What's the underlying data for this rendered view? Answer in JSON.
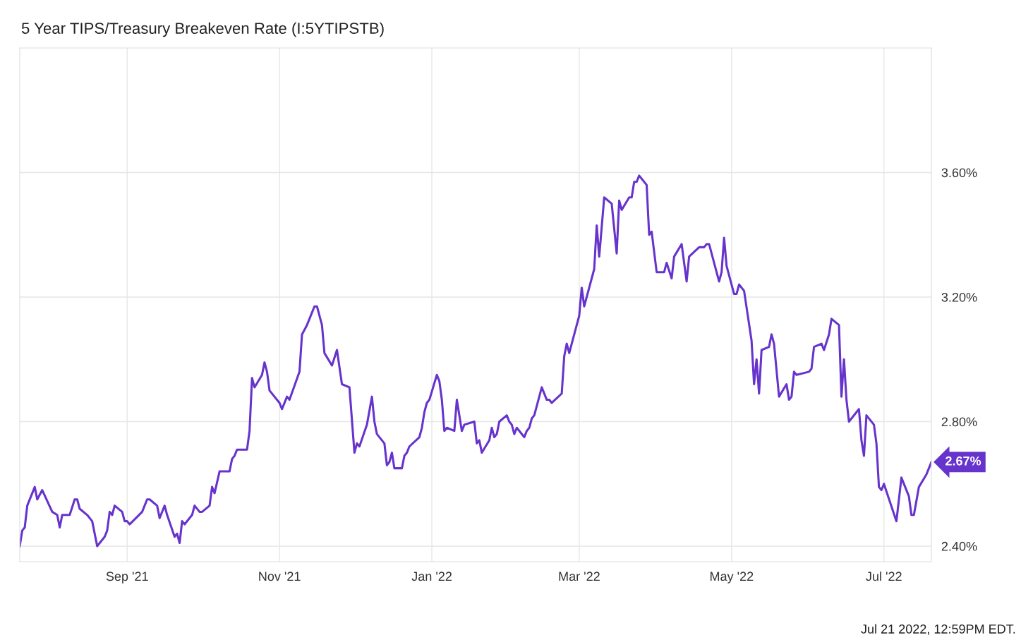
{
  "chart_data": {
    "type": "line",
    "title": "5 Year TIPS/Treasury Breakeven Rate (I:5YTIPSTB)",
    "x": [
      "2021-07-20",
      "2021-07-21",
      "2021-07-22",
      "2021-07-23",
      "2021-07-26",
      "2021-07-27",
      "2021-07-29",
      "2021-08-02",
      "2021-08-04",
      "2021-08-05",
      "2021-08-06",
      "2021-08-09",
      "2021-08-11",
      "2021-08-12",
      "2021-08-13",
      "2021-08-16",
      "2021-08-18",
      "2021-08-20",
      "2021-08-23",
      "2021-08-24",
      "2021-08-25",
      "2021-08-26",
      "2021-08-27",
      "2021-08-30",
      "2021-08-31",
      "2021-09-01",
      "2021-09-02",
      "2021-09-07",
      "2021-09-09",
      "2021-09-10",
      "2021-09-13",
      "2021-09-14",
      "2021-09-16",
      "2021-09-17",
      "2021-09-20",
      "2021-09-21",
      "2021-09-22",
      "2021-09-23",
      "2021-09-24",
      "2021-09-27",
      "2021-09-28",
      "2021-09-30",
      "2021-10-01",
      "2021-10-04",
      "2021-10-05",
      "2021-10-06",
      "2021-10-08",
      "2021-10-12",
      "2021-10-13",
      "2021-10-14",
      "2021-10-15",
      "2021-10-19",
      "2021-10-20",
      "2021-10-21",
      "2021-10-22",
      "2021-10-25",
      "2021-10-26",
      "2021-10-27",
      "2021-10-28",
      "2021-11-01",
      "2021-11-02",
      "2021-11-04",
      "2021-11-05",
      "2021-11-09",
      "2021-11-10",
      "2021-11-12",
      "2021-11-15",
      "2021-11-16",
      "2021-11-18",
      "2021-11-19",
      "2021-11-22",
      "2021-11-24",
      "2021-11-26",
      "2021-11-29",
      "2021-12-01",
      "2021-12-02",
      "2021-12-03",
      "2021-12-06",
      "2021-12-08",
      "2021-12-09",
      "2021-12-10",
      "2021-12-13",
      "2021-12-14",
      "2021-12-15",
      "2021-12-16",
      "2021-12-17",
      "2021-12-20",
      "2021-12-21",
      "2021-12-22",
      "2021-12-23",
      "2021-12-27",
      "2021-12-28",
      "2021-12-29",
      "2021-12-30",
      "2021-12-31",
      "2022-01-03",
      "2022-01-04",
      "2022-01-05",
      "2022-01-06",
      "2022-01-07",
      "2022-01-10",
      "2022-01-11",
      "2022-01-13",
      "2022-01-14",
      "2022-01-18",
      "2022-01-19",
      "2022-01-20",
      "2022-01-21",
      "2022-01-24",
      "2022-01-25",
      "2022-01-26",
      "2022-01-27",
      "2022-01-28",
      "2022-01-31",
      "2022-02-01",
      "2022-02-02",
      "2022-02-03",
      "2022-02-04",
      "2022-02-07",
      "2022-02-08",
      "2022-02-09",
      "2022-02-10",
      "2022-02-11",
      "2022-02-14",
      "2022-02-16",
      "2022-02-17",
      "2022-02-18",
      "2022-02-22",
      "2022-02-23",
      "2022-02-24",
      "2022-02-25",
      "2022-03-01",
      "2022-03-02",
      "2022-03-03",
      "2022-03-04",
      "2022-03-07",
      "2022-03-08",
      "2022-03-09",
      "2022-03-11",
      "2022-03-14",
      "2022-03-16",
      "2022-03-17",
      "2022-03-18",
      "2022-03-21",
      "2022-03-22",
      "2022-03-23",
      "2022-03-24",
      "2022-03-25",
      "2022-03-28",
      "2022-03-29",
      "2022-03-30",
      "2022-04-01",
      "2022-04-04",
      "2022-04-05",
      "2022-04-07",
      "2022-04-08",
      "2022-04-11",
      "2022-04-13",
      "2022-04-14",
      "2022-04-18",
      "2022-04-20",
      "2022-04-21",
      "2022-04-22",
      "2022-04-25",
      "2022-04-26",
      "2022-04-27",
      "2022-04-28",
      "2022-04-29",
      "2022-05-02",
      "2022-05-03",
      "2022-05-04",
      "2022-05-06",
      "2022-05-09",
      "2022-05-10",
      "2022-05-11",
      "2022-05-12",
      "2022-05-13",
      "2022-05-16",
      "2022-05-17",
      "2022-05-18",
      "2022-05-20",
      "2022-05-23",
      "2022-05-24",
      "2022-05-25",
      "2022-05-26",
      "2022-05-27",
      "2022-06-01",
      "2022-06-02",
      "2022-06-03",
      "2022-06-06",
      "2022-06-07",
      "2022-06-09",
      "2022-06-10",
      "2022-06-13",
      "2022-06-14",
      "2022-06-15",
      "2022-06-16",
      "2022-06-17",
      "2022-06-21",
      "2022-06-22",
      "2022-06-23",
      "2022-06-24",
      "2022-06-27",
      "2022-06-28",
      "2022-06-29",
      "2022-06-30",
      "2022-07-01",
      "2022-07-06",
      "2022-07-08",
      "2022-07-11",
      "2022-07-12",
      "2022-07-13",
      "2022-07-15",
      "2022-07-18",
      "2022-07-20"
    ],
    "series": [
      {
        "color": "#6633cc",
        "values": [
          2.4,
          2.45,
          2.46,
          2.53,
          2.59,
          2.55,
          2.58,
          2.51,
          2.5,
          2.46,
          2.5,
          2.5,
          2.55,
          2.55,
          2.52,
          2.5,
          2.48,
          2.4,
          2.43,
          2.45,
          2.51,
          2.5,
          2.53,
          2.51,
          2.48,
          2.48,
          2.47,
          2.51,
          2.55,
          2.55,
          2.53,
          2.49,
          2.53,
          2.5,
          2.43,
          2.44,
          2.41,
          2.48,
          2.47,
          2.5,
          2.53,
          2.51,
          2.51,
          2.53,
          2.59,
          2.57,
          2.64,
          2.64,
          2.68,
          2.69,
          2.71,
          2.71,
          2.77,
          2.94,
          2.91,
          2.95,
          2.99,
          2.96,
          2.9,
          2.86,
          2.84,
          2.88,
          2.87,
          2.96,
          3.08,
          3.11,
          3.17,
          3.17,
          3.11,
          3.02,
          2.98,
          3.03,
          2.92,
          2.91,
          2.7,
          2.73,
          2.72,
          2.79,
          2.88,
          2.8,
          2.76,
          2.73,
          2.66,
          2.67,
          2.7,
          2.65,
          2.65,
          2.69,
          2.7,
          2.72,
          2.75,
          2.78,
          2.83,
          2.86,
          2.87,
          2.95,
          2.93,
          2.87,
          2.77,
          2.78,
          2.77,
          2.87,
          2.77,
          2.79,
          2.8,
          2.73,
          2.74,
          2.7,
          2.74,
          2.78,
          2.75,
          2.76,
          2.8,
          2.82,
          2.8,
          2.79,
          2.76,
          2.78,
          2.75,
          2.77,
          2.78,
          2.81,
          2.82,
          2.91,
          2.87,
          2.87,
          2.86,
          2.89,
          3.01,
          3.05,
          3.02,
          3.14,
          3.23,
          3.17,
          3.2,
          3.29,
          3.43,
          3.33,
          3.52,
          3.5,
          3.34,
          3.51,
          3.48,
          3.52,
          3.52,
          3.57,
          3.57,
          3.59,
          3.56,
          3.4,
          3.41,
          3.28,
          3.28,
          3.31,
          3.26,
          3.33,
          3.37,
          3.25,
          3.33,
          3.36,
          3.36,
          3.37,
          3.37,
          3.28,
          3.25,
          3.28,
          3.39,
          3.3,
          3.21,
          3.21,
          3.24,
          3.22,
          3.06,
          2.92,
          3.0,
          2.89,
          3.03,
          3.04,
          3.08,
          3.05,
          2.88,
          2.92,
          2.87,
          2.88,
          2.96,
          2.95,
          2.96,
          2.97,
          3.04,
          3.05,
          3.03,
          3.08,
          3.13,
          3.11,
          2.88,
          3.0,
          2.87,
          2.8,
          2.84,
          2.74,
          2.69,
          2.82,
          2.79,
          2.73,
          2.59,
          2.58,
          2.6,
          2.48,
          2.62,
          2.56,
          2.5,
          2.5,
          2.59,
          2.63,
          2.67
        ]
      }
    ],
    "xlim": [
      "2021-07-20",
      "2022-07-20"
    ],
    "xticks": [
      {
        "value": "2021-09-01",
        "label": "Sep '21"
      },
      {
        "value": "2021-11-01",
        "label": "Nov '21"
      },
      {
        "value": "2022-01-01",
        "label": "Jan '22"
      },
      {
        "value": "2022-03-01",
        "label": "Mar '22"
      },
      {
        "value": "2022-05-01",
        "label": "May '22"
      },
      {
        "value": "2022-07-01",
        "label": "Jul '22"
      }
    ],
    "ylim": [
      2.35,
      4.0
    ],
    "yticks": [
      {
        "value": 2.4,
        "label": "2.40%"
      },
      {
        "value": 2.8,
        "label": "2.80%"
      },
      {
        "value": 3.2,
        "label": "3.20%"
      },
      {
        "value": 3.6,
        "label": "3.60%"
      }
    ],
    "grid": true,
    "legend": false,
    "marker": "none",
    "line_style": "solid",
    "annotations": [
      {
        "text": "2.67%",
        "x": "2022-07-20",
        "y": 2.67
      },
      "Jul 21 2022, 12:59PM EDT."
    ]
  }
}
